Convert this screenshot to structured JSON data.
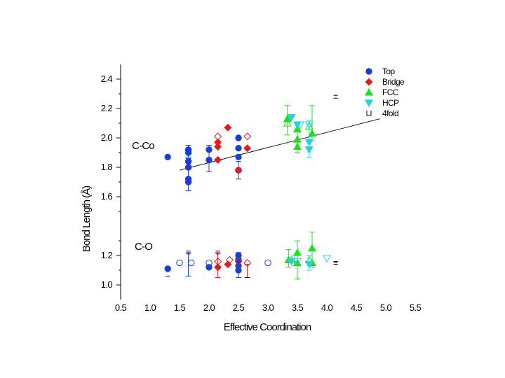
{
  "chart_data": {
    "type": "scatter",
    "xlabel": "Effective Coordination",
    "ylabel": "Bond Length (Å)",
    "xlim": [
      0.5,
      5.5
    ],
    "ylim": [
      0.9,
      2.5
    ],
    "x_ticks": [
      "0.5",
      "1.0",
      "1.5",
      "2.0",
      "2.5",
      "3.0",
      "3.5",
      "4.0",
      "4.5",
      "5.0",
      "5.5"
    ],
    "y_ticks": [
      "1.0",
      "1.2",
      "1.6",
      "1.8",
      "2.0",
      "2.2",
      "2.4"
    ],
    "annotations": [
      "C-Co",
      "C-O"
    ],
    "legend": {
      "position": "top-right",
      "entries": [
        "Top",
        "Bridge",
        "FCC",
        "HCP",
        "4fold"
      ]
    },
    "colors": {
      "Top": "#1a3fd1",
      "Bridge": "#e01b1b",
      "FCC": "#22dd22",
      "HCP": "#1fd3ea",
      "4fold": "#000000"
    },
    "trendline": {
      "label": "C-Co",
      "x": [
        1.5,
        4.9
      ],
      "y": [
        1.78,
        2.13
      ]
    },
    "series": [
      {
        "name": "Top",
        "marker": "circle-filled",
        "points": [
          [
            1.3,
            1.87
          ],
          [
            1.65,
            1.92
          ],
          [
            1.65,
            1.9
          ],
          [
            1.65,
            1.84
          ],
          [
            1.65,
            1.8
          ],
          [
            1.65,
            1.72
          ],
          [
            1.65,
            1.7
          ],
          [
            2.0,
            1.92
          ],
          [
            2.0,
            1.85
          ],
          [
            2.5,
            2.0
          ],
          [
            2.5,
            1.93
          ],
          [
            2.5,
            1.87
          ],
          [
            2.5,
            1.78
          ],
          [
            1.3,
            1.11
          ],
          [
            2.0,
            1.12
          ],
          [
            2.5,
            1.2
          ],
          [
            2.5,
            1.17
          ],
          [
            2.5,
            1.13
          ],
          [
            2.5,
            1.1
          ]
        ]
      },
      {
        "name": "Top (hollow)",
        "marker": "circle-open",
        "points": [
          [
            1.5,
            1.15
          ],
          [
            1.7,
            1.15
          ],
          [
            2.0,
            1.15
          ],
          [
            3.0,
            1.15
          ]
        ]
      },
      {
        "name": "Bridge",
        "marker": "diamond-filled",
        "points": [
          [
            2.15,
            1.97
          ],
          [
            2.15,
            1.94
          ],
          [
            2.15,
            1.85
          ],
          [
            2.32,
            2.07
          ],
          [
            2.65,
            1.93
          ],
          [
            2.5,
            1.78
          ],
          [
            2.15,
            1.12
          ],
          [
            2.32,
            1.14
          ]
        ]
      },
      {
        "name": "Bridge (hollow)",
        "marker": "diamond-open",
        "points": [
          [
            2.15,
            2.01
          ],
          [
            2.65,
            2.01
          ],
          [
            2.15,
            1.16
          ],
          [
            2.35,
            1.17
          ],
          [
            2.5,
            1.16
          ],
          [
            2.65,
            1.15
          ]
        ]
      },
      {
        "name": "FCC",
        "marker": "triangle-up-filled",
        "points": [
          [
            3.33,
            2.13
          ],
          [
            3.5,
            2.06
          ],
          [
            3.5,
            1.99
          ],
          [
            3.5,
            1.94
          ],
          [
            3.75,
            2.03
          ],
          [
            3.35,
            1.17
          ],
          [
            3.5,
            1.22
          ],
          [
            3.5,
            1.15
          ],
          [
            3.75,
            1.25
          ],
          [
            3.75,
            1.15
          ]
        ]
      },
      {
        "name": "FCC (hollow)",
        "marker": "triangle-up-open",
        "points": [
          [
            3.33,
            2.1
          ],
          [
            3.7,
            2.08
          ],
          [
            3.4,
            1.17
          ],
          [
            3.7,
            1.17
          ]
        ]
      },
      {
        "name": "HCP",
        "marker": "triangle-down-filled",
        "points": [
          [
            3.4,
            2.14
          ],
          [
            3.5,
            2.09
          ],
          [
            3.7,
            1.97
          ],
          [
            3.7,
            1.92
          ],
          [
            3.4,
            1.16
          ],
          [
            3.7,
            1.14
          ]
        ]
      },
      {
        "name": "HCP (hollow)",
        "marker": "triangle-down-open",
        "points": [
          [
            3.55,
            2.09
          ],
          [
            3.7,
            2.09
          ],
          [
            3.5,
            1.16
          ],
          [
            4.0,
            1.18
          ]
        ]
      },
      {
        "name": "4fold",
        "marker": "fourfold",
        "points": [
          [
            4.15,
            2.28
          ],
          [
            4.15,
            1.15
          ]
        ]
      }
    ],
    "errorbars": [
      {
        "series": "Top",
        "x": 1.65,
        "ylo": 1.87,
        "yhi": 1.95
      },
      {
        "series": "Top",
        "x": 1.65,
        "ylo": 1.64,
        "yhi": 1.86
      },
      {
        "series": "Top",
        "x": 2.0,
        "ylo": 1.77,
        "yhi": 1.95
      },
      {
        "series": "Top",
        "x": 2.5,
        "ylo": 1.72,
        "yhi": 1.84
      },
      {
        "series": "Top",
        "x": 1.65,
        "ylo": 1.06,
        "yhi": 1.22
      },
      {
        "series": "Top",
        "x": 2.5,
        "ylo": 1.05,
        "yhi": 1.22
      },
      {
        "series": "Bridge",
        "x": 2.15,
        "ylo": 1.05,
        "yhi": 1.22
      },
      {
        "series": "Bridge",
        "x": 2.65,
        "ylo": 1.05,
        "yhi": 1.14
      },
      {
        "series": "FCC",
        "x": 3.33,
        "ylo": 2.02,
        "yhi": 2.22
      },
      {
        "series": "FCC",
        "x": 3.5,
        "ylo": 1.9,
        "yhi": 2.1
      },
      {
        "series": "FCC",
        "x": 3.75,
        "ylo": 1.98,
        "yhi": 2.22
      },
      {
        "series": "FCC",
        "x": 3.35,
        "ylo": 1.12,
        "yhi": 1.24
      },
      {
        "series": "FCC",
        "x": 3.5,
        "ylo": 1.04,
        "yhi": 1.3
      },
      {
        "series": "FCC",
        "x": 3.75,
        "ylo": 1.12,
        "yhi": 1.36
      },
      {
        "series": "HCP",
        "x": 3.7,
        "ylo": 1.87,
        "yhi": 2.12
      },
      {
        "series": "HCP",
        "x": 3.45,
        "ylo": 1.13,
        "yhi": 1.2
      },
      {
        "series": "HCP",
        "x": 3.7,
        "ylo": 1.1,
        "yhi": 1.2
      }
    ],
    "extra_marks": [
      {
        "type": "dash",
        "x": 1.3,
        "y": 1.06
      },
      {
        "type": "dash",
        "x": 2.65,
        "y": 1.05
      },
      {
        "type": "dash",
        "x": 4.15,
        "y": 1.15
      },
      {
        "type": "double-dash",
        "x": 2.15,
        "y": 1.22
      },
      {
        "type": "double-dash",
        "x": 1.65,
        "y": 1.22
      }
    ]
  }
}
